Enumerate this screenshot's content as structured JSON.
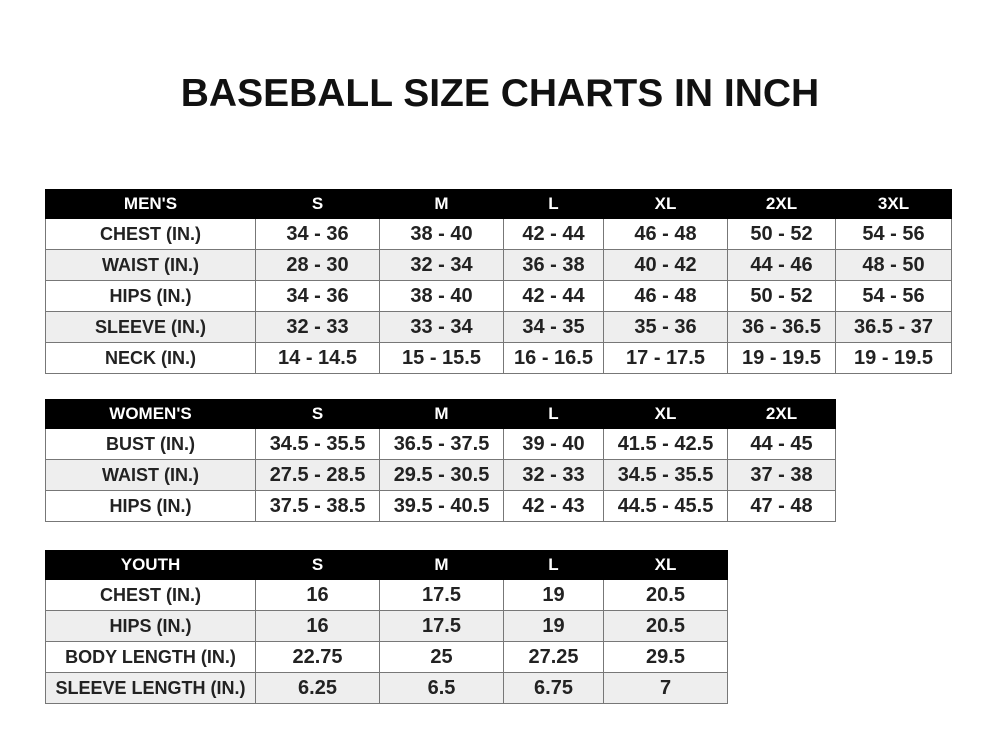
{
  "title": "BASEBALL SIZE CHARTS IN INCH",
  "tables": [
    {
      "name": "men",
      "header": [
        "MEN'S",
        "S",
        "M",
        "L",
        "XL",
        "2XL",
        "3XL"
      ],
      "rows": [
        [
          "CHEST (IN.)",
          "34 - 36",
          "38 - 40",
          "42 - 44",
          "46 - 48",
          "50 - 52",
          "54 - 56"
        ],
        [
          "WAIST (IN.)",
          "28 - 30",
          "32 - 34",
          "36 - 38",
          "40 - 42",
          "44 - 46",
          "48 - 50"
        ],
        [
          "HIPS (IN.)",
          "34 - 36",
          "38 - 40",
          "42 - 44",
          "46 - 48",
          "50 - 52",
          "54 - 56"
        ],
        [
          "SLEEVE (IN.)",
          "32 - 33",
          "33 - 34",
          "34 - 35",
          "35 - 36",
          "36 - 36.5",
          "36.5 - 37"
        ],
        [
          "NECK (IN.)",
          "14 - 14.5",
          "15 - 15.5",
          "16 - 16.5",
          "17 - 17.5",
          "19 - 19.5",
          "19 - 19.5"
        ]
      ]
    },
    {
      "name": "women",
      "header": [
        "WOMEN'S",
        "S",
        "M",
        "L",
        "XL",
        "2XL"
      ],
      "rows": [
        [
          "BUST (IN.)",
          "34.5 - 35.5",
          "36.5 - 37.5",
          "39 - 40",
          "41.5 - 42.5",
          "44 - 45"
        ],
        [
          "WAIST (IN.)",
          "27.5 - 28.5",
          "29.5 - 30.5",
          "32 - 33",
          "34.5 - 35.5",
          "37 - 38"
        ],
        [
          "HIPS (IN.)",
          "37.5 - 38.5",
          "39.5 - 40.5",
          "42 - 43",
          "44.5 - 45.5",
          "47 - 48"
        ]
      ]
    },
    {
      "name": "youth",
      "header": [
        "YOUTH",
        "S",
        "M",
        "L",
        "XL"
      ],
      "rows": [
        [
          "CHEST (IN.)",
          "16",
          "17.5",
          "19",
          "20.5"
        ],
        [
          "HIPS (IN.)",
          "16",
          "17.5",
          "19",
          "20.5"
        ],
        [
          "BODY LENGTH (IN.)",
          "22.75",
          "25",
          "27.25",
          "29.5"
        ],
        [
          "SLEEVE LENGTH (IN.)",
          "6.25",
          "6.5",
          "6.75",
          "7"
        ]
      ]
    }
  ]
}
